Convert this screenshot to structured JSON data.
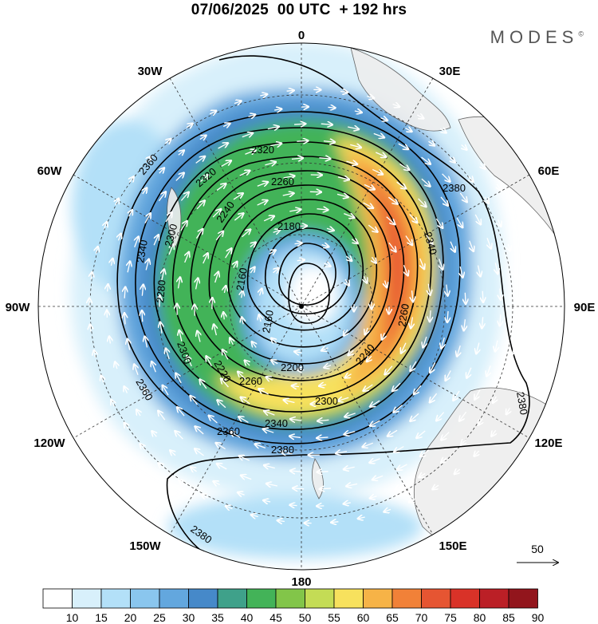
{
  "title": "07/06/2025  00 UTC  + 192 hrs",
  "brand": "MODES",
  "brand_mark": "©",
  "longitude_labels": {
    "n0": "0",
    "e30": "30E",
    "e60": "60E",
    "e90": "90E",
    "e120": "120E",
    "e150": "150E",
    "s180": "180",
    "w150": "150W",
    "w120": "120W",
    "w90": "90W",
    "w60": "60W",
    "w30": "30W"
  },
  "contour_labels": [
    "2380",
    "2380",
    "2380",
    "2380",
    "2360",
    "2360",
    "2360",
    "2340",
    "2340",
    "2340",
    "2320",
    "2320",
    "2300",
    "2300",
    "2300",
    "2280",
    "2260",
    "2260",
    "2260",
    "2240",
    "2240",
    "2220",
    "2200",
    "2180",
    "2160",
    "2160"
  ],
  "wind_reference": {
    "value": "50"
  },
  "colorbar": {
    "labels": [
      "10",
      "15",
      "20",
      "25",
      "30",
      "35",
      "40",
      "45",
      "50",
      "55",
      "60",
      "65",
      "70",
      "75",
      "80",
      "85",
      "90"
    ],
    "colors": [
      "#ffffff",
      "#d8f0fb",
      "#b3e0f8",
      "#8ac6ee",
      "#63a7de",
      "#4689c9",
      "#3fa18a",
      "#43b358",
      "#82c549",
      "#c4dc55",
      "#f7e15d",
      "#f6b347",
      "#f18138",
      "#e65532",
      "#d93228",
      "#bb1f26",
      "#92151c"
    ]
  }
}
